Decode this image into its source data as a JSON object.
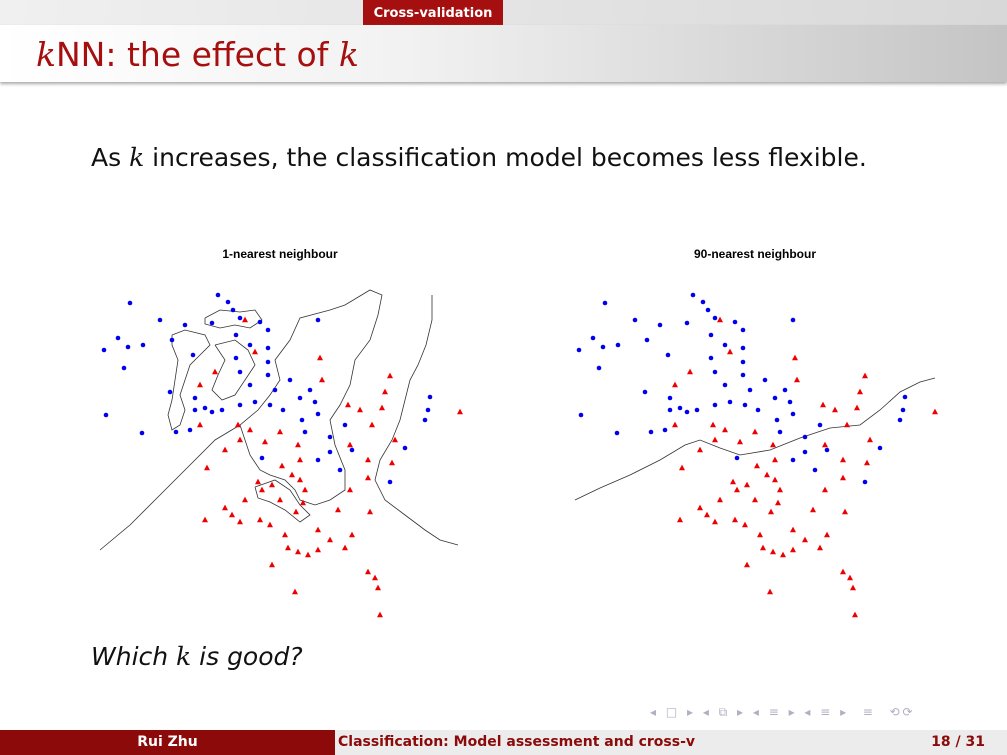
{
  "header": {
    "section": "Cross-validation",
    "title": [
      "k",
      "NN: the effect of ",
      "k"
    ]
  },
  "body": {
    "text": [
      "As ",
      "k",
      " increases, the classification model becomes less flexible."
    ],
    "question": [
      "Which ",
      "k",
      " is good?"
    ]
  },
  "footer": {
    "author": "Rui Zhu",
    "talk": "Classification: Model assessment and cross-v",
    "page": "18 / 31"
  },
  "chart_data": [
    {
      "type": "scatter",
      "title": "1-nearest neighbour",
      "xlim": [
        0,
        360
      ],
      "ylim": [
        330,
        0
      ],
      "series": [
        {
          "color": "#0000ee",
          "marker": "circle",
          "x": [
            30,
            60,
            118,
            128,
            133,
            18,
            4,
            28,
            24,
            43,
            72,
            85,
            93,
            112,
            140,
            160,
            168,
            136,
            150,
            168,
            218,
            136,
            140,
            150,
            168,
            168,
            175,
            190,
            200,
            210,
            215,
            218,
            202,
            205,
            183,
            170,
            155,
            140,
            122,
            112,
            105,
            95,
            70,
            95,
            76,
            42,
            6,
            90,
            162,
            218,
            230,
            240,
            252,
            230,
            245,
            305,
            290,
            325,
            330,
            328
          ],
          "values": [
            13,
            30,
            5,
            12,
            20,
            48,
            60,
            57,
            78,
            55,
            50,
            35,
            65,
            33,
            28,
            32,
            40,
            45,
            55,
            58,
            30,
            68,
            82,
            95,
            72,
            85,
            100,
            90,
            108,
            100,
            112,
            124,
            130,
            142,
            120,
            115,
            112,
            115,
            120,
            122,
            118,
            120,
            102,
            108,
            142,
            143,
            125,
            140,
            168,
            170,
            162,
            180,
            160,
            147,
            135,
            158,
            192,
            130,
            107,
            120
          ]
        },
        {
          "color": "#ee0000",
          "marker": "triangle",
          "x": [
            145,
            155,
            220,
            222,
            290,
            100,
            115,
            285,
            282,
            260,
            272,
            248,
            360,
            100,
            138,
            150,
            140,
            180,
            165,
            198,
            200,
            125,
            107,
            182,
            192,
            172,
            162,
            158,
            200,
            205,
            180,
            196,
            203,
            145,
            125,
            105,
            132,
            140,
            160,
            170,
            250,
            268,
            268,
            250,
            295,
            238,
            270,
            252,
            245,
            185,
            188,
            198,
            208,
            218,
            230,
            172,
            268,
            275,
            278,
            195,
            280,
            292,
            218
          ],
          "values": [
            30,
            62,
            68,
            90,
            86,
            95,
            82,
            102,
            118,
            120,
            135,
            115,
            122,
            135,
            135,
            140,
            150,
            142,
            152,
            155,
            170,
            160,
            178,
            176,
            185,
            195,
            200,
            192,
            190,
            200,
            210,
            222,
            213,
            210,
            218,
            230,
            225,
            232,
            230,
            235,
            200,
            188,
            170,
            155,
            150,
            220,
            222,
            245,
            258,
            245,
            258,
            262,
            265,
            260,
            250,
            275,
            282,
            288,
            298,
            302,
            325,
            173,
            240
          ]
        }
      ]
    },
    {
      "type": "scatter",
      "title": "90-nearest neighbour",
      "xlim": [
        0,
        360
      ],
      "ylim": [
        330,
        0
      ],
      "series": [
        {
          "color": "#0000ee",
          "marker": "circle",
          "x": [
            30,
            60,
            118,
            128,
            133,
            18,
            4,
            28,
            24,
            43,
            72,
            85,
            93,
            112,
            140,
            160,
            168,
            136,
            150,
            168,
            218,
            136,
            140,
            150,
            168,
            168,
            175,
            190,
            200,
            210,
            215,
            218,
            202,
            205,
            183,
            170,
            155,
            140,
            122,
            112,
            105,
            95,
            70,
            95,
            76,
            42,
            6,
            90,
            162,
            218,
            230,
            240,
            252,
            230,
            245,
            305,
            290,
            325,
            330,
            328
          ],
          "values": [
            13,
            30,
            5,
            12,
            20,
            48,
            60,
            57,
            78,
            55,
            50,
            35,
            65,
            33,
            28,
            32,
            40,
            45,
            55,
            58,
            30,
            68,
            82,
            95,
            72,
            85,
            100,
            90,
            108,
            100,
            112,
            124,
            130,
            142,
            120,
            115,
            112,
            115,
            120,
            122,
            118,
            120,
            102,
            108,
            142,
            143,
            125,
            140,
            168,
            170,
            162,
            180,
            160,
            147,
            135,
            158,
            192,
            130,
            107,
            120
          ]
        },
        {
          "color": "#ee0000",
          "marker": "triangle",
          "x": [
            145,
            155,
            220,
            222,
            290,
            100,
            115,
            285,
            282,
            260,
            272,
            248,
            360,
            100,
            138,
            150,
            140,
            180,
            165,
            198,
            200,
            125,
            107,
            182,
            192,
            172,
            162,
            158,
            200,
            205,
            180,
            196,
            203,
            145,
            125,
            105,
            132,
            140,
            160,
            170,
            250,
            268,
            268,
            250,
            295,
            238,
            270,
            252,
            245,
            185,
            188,
            198,
            208,
            218,
            230,
            172,
            268,
            275,
            278,
            195,
            280,
            292,
            218
          ],
          "values": [
            30,
            62,
            68,
            90,
            86,
            95,
            82,
            102,
            118,
            120,
            135,
            115,
            122,
            135,
            135,
            140,
            150,
            142,
            152,
            155,
            170,
            160,
            178,
            176,
            185,
            195,
            200,
            192,
            190,
            200,
            210,
            222,
            213,
            210,
            218,
            230,
            225,
            232,
            230,
            235,
            200,
            188,
            170,
            155,
            150,
            220,
            222,
            245,
            258,
            245,
            258,
            262,
            265,
            260,
            250,
            275,
            282,
            288,
            298,
            302,
            325,
            173,
            240
          ]
        }
      ]
    }
  ]
}
